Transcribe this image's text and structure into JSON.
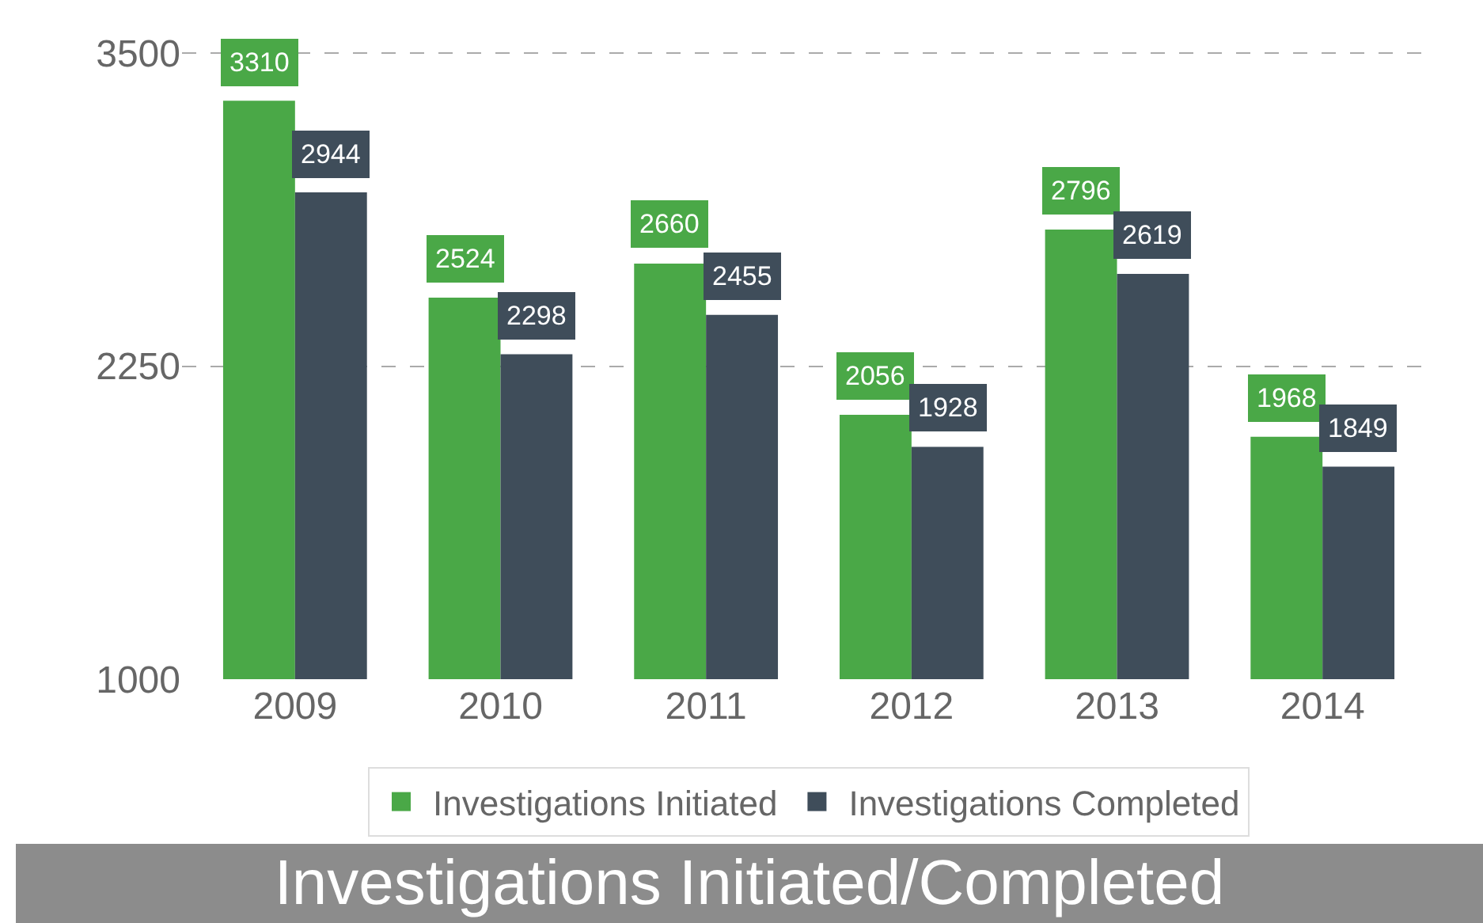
{
  "chart_data": {
    "type": "bar",
    "title": "Investigations Initiated/Completed",
    "categories": [
      "2009",
      "2010",
      "2011",
      "2012",
      "2013",
      "2014"
    ],
    "series": [
      {
        "name": "Investigations Initiated",
        "color": "#4aa847",
        "values": [
          3310,
          2524,
          2660,
          2056,
          2796,
          1968
        ]
      },
      {
        "name": "Investigations Completed",
        "color": "#3f4d5a",
        "values": [
          2944,
          2298,
          2455,
          1928,
          2619,
          1849
        ]
      }
    ],
    "ylim": [
      1000,
      3700
    ],
    "yticks": [
      1000,
      2250,
      3500
    ],
    "grid": "y",
    "legend": "bottom",
    "data_labels": true
  }
}
